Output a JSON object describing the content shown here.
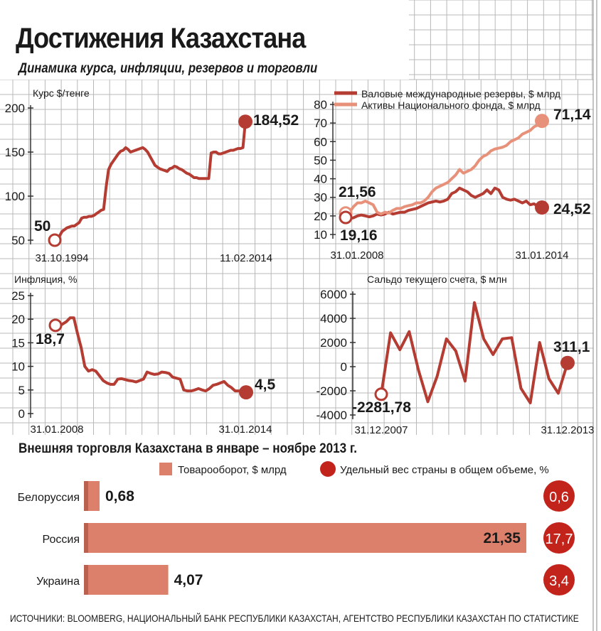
{
  "header": {
    "title": "Достижения Казахстана",
    "subtitle": "Динамика курса, инфляции, резервов и торговли"
  },
  "colors": {
    "dark_red": "#b43c32",
    "light_red": "#e8917a",
    "bar_fill": "#dc7f6b",
    "grid": "#b8b8b8",
    "bubble": "#c2241c"
  },
  "chart_data": [
    {
      "id": "exchange",
      "type": "line",
      "ylabel": "Курс $/тенге",
      "ylim": [
        50,
        200
      ],
      "yticks": [
        50,
        100,
        150,
        200
      ],
      "x_start_label": "31.10.1994",
      "x_end_label": "11.02.2014",
      "series": [
        {
          "color": "dark_red",
          "values": [
            50,
            50,
            55,
            60,
            62,
            64,
            65,
            66,
            66,
            68,
            70,
            75,
            76,
            76,
            77,
            77,
            78,
            80,
            82,
            84,
            85,
            110,
            130,
            136,
            140,
            144,
            148,
            151,
            152,
            155,
            153,
            150,
            151,
            152,
            153,
            154,
            155,
            153,
            150,
            145,
            140,
            135,
            133,
            131,
            130,
            129,
            128,
            131,
            132,
            134,
            133,
            131,
            130,
            128,
            126,
            125,
            123,
            121,
            121,
            120,
            120,
            120,
            120,
            120,
            149,
            150,
            150,
            148,
            148,
            149,
            150,
            151,
            152,
            152,
            153,
            154,
            154,
            155,
            184.52
          ]
        }
      ],
      "annotations": [
        {
          "label": "50",
          "index": "first",
          "value": 50,
          "marker": "hollow"
        },
        {
          "label": "184,52",
          "index": "last",
          "value": 184.52,
          "marker": "filled"
        }
      ]
    },
    {
      "id": "reserves",
      "type": "line",
      "ylim": [
        10,
        80
      ],
      "yticks": [
        10,
        20,
        30,
        40,
        50,
        60,
        70,
        80
      ],
      "x_start_label": "31.01.2008",
      "x_end_label": "31.01.2014",
      "legend": [
        "Валовые международные резервы, $ млрд",
        "Активы Национального фонда, $ млрд"
      ],
      "series": [
        {
          "name": "Валовые международные резервы, $ млрд",
          "color": "dark_red",
          "values": [
            19.16,
            18.5,
            19,
            20,
            20.5,
            20,
            19.5,
            20,
            21,
            20.5,
            21,
            22,
            21,
            21.5,
            22,
            22,
            23,
            23.5,
            24,
            25,
            26,
            27,
            27.5,
            28,
            27.5,
            28,
            29,
            32,
            33,
            35,
            34,
            33,
            31,
            30,
            31,
            32,
            34,
            32,
            35,
            34,
            30,
            29,
            28.5,
            29,
            28,
            27,
            28,
            26,
            26.5,
            25,
            24.52
          ]
        },
        {
          "name": "Активы Национального фонда, $ млрд",
          "color": "light_red",
          "values": [
            21.56,
            22,
            25,
            27,
            27,
            28,
            27,
            26,
            22,
            21,
            22,
            21.5,
            23,
            24,
            24,
            25,
            25.5,
            26,
            27,
            27,
            28,
            30,
            33,
            35,
            36,
            37,
            38,
            40,
            42,
            45,
            43,
            44,
            45,
            47,
            50,
            52,
            53,
            55,
            56,
            56.5,
            57,
            58,
            60,
            61,
            62,
            64,
            65,
            66,
            68,
            69,
            71.14
          ]
        }
      ],
      "annotations": [
        {
          "label": "21,56",
          "series": 1,
          "index": "first",
          "value": 21.56,
          "marker": "hollow"
        },
        {
          "label": "19,16",
          "series": 0,
          "index": "first",
          "value": 19.16,
          "marker": "hollow"
        },
        {
          "label": "71,14",
          "series": 1,
          "index": "last",
          "value": 71.14,
          "marker": "filled"
        },
        {
          "label": "24,52",
          "series": 0,
          "index": "last",
          "value": 24.52,
          "marker": "filled"
        }
      ]
    },
    {
      "id": "inflation",
      "type": "line",
      "ylabel": "Инфляция, %",
      "ylim": [
        0,
        25
      ],
      "yticks": [
        0,
        5,
        10,
        15,
        20,
        25
      ],
      "x_start_label": "31.01.2008",
      "x_end_label": "31.01.2014",
      "series": [
        {
          "color": "dark_red",
          "values": [
            18.7,
            18.5,
            19,
            19.5,
            20.3,
            20.3,
            17,
            14,
            10,
            9,
            9.3,
            9,
            8,
            7,
            6.5,
            6.2,
            6.2,
            7.3,
            7.4,
            7.2,
            7,
            6.9,
            6.7,
            7,
            7.3,
            8.8,
            8.5,
            8.3,
            8.4,
            8.8,
            8.7,
            8.5,
            7.7,
            7.5,
            7.3,
            5,
            4.8,
            4.8,
            5,
            5.3,
            5,
            4.8,
            5.3,
            6,
            6.2,
            6.5,
            6.8,
            6,
            5.5,
            4.8,
            4.8,
            4.7,
            4.5
          ]
        }
      ],
      "annotations": [
        {
          "label": "18,7",
          "index": "first",
          "value": 18.7,
          "marker": "hollow"
        },
        {
          "label": "4,5",
          "index": "last",
          "value": 4.5,
          "marker": "filled"
        }
      ]
    },
    {
      "id": "current_account",
      "type": "line",
      "ylabel": "Сальдо текущего счета, $ млн",
      "ylim": [
        -4000,
        6000
      ],
      "yticks": [
        -4000,
        -2000,
        0,
        2000,
        4000,
        6000
      ],
      "x_start_label": "31.12.2007",
      "x_end_label": "31.12.2013",
      "series": [
        {
          "color": "dark_red",
          "values": [
            -2281.78,
            2800,
            1400,
            2900,
            -300,
            -2900,
            -800,
            2300,
            1300,
            -1200,
            5300,
            2300,
            1000,
            2300,
            2400,
            -1800,
            -3000,
            2000,
            -1000,
            -2200,
            311.1
          ]
        }
      ],
      "annotations": [
        {
          "label": "-2281,78",
          "index": "first",
          "value": -2281.78,
          "marker": "hollow"
        },
        {
          "label": "311,1",
          "index": "last",
          "value": 311.1,
          "marker": "filled"
        }
      ]
    },
    {
      "id": "trade",
      "type": "bar",
      "title": "Внешняя торговля Казахстана в январе – ноябре 2013 г.",
      "legend": [
        "Товарооборот, $ млрд",
        "Удельный вес страны в общем объеме, %"
      ],
      "categories": [
        "Белоруссия",
        "Россия",
        "Украина"
      ],
      "values": [
        0.68,
        21.35,
        4.07
      ],
      "value_labels": [
        "0,68",
        "21,35",
        "4,07"
      ],
      "shares": [
        0.6,
        17.7,
        3.4
      ],
      "share_labels": [
        "0,6",
        "17,7",
        "3,4"
      ]
    }
  ],
  "footer": {
    "source": "ИСТОЧНИКИ: BLOOMBERG, НАЦИОНАЛЬНЫЙ БАНК РЕСПУБЛИКИ КАЗАХСТАН, АГЕНТСТВО РЕСПУБЛИКИ КАЗАХСТАН ПО СТАТИСТИКЕ"
  }
}
